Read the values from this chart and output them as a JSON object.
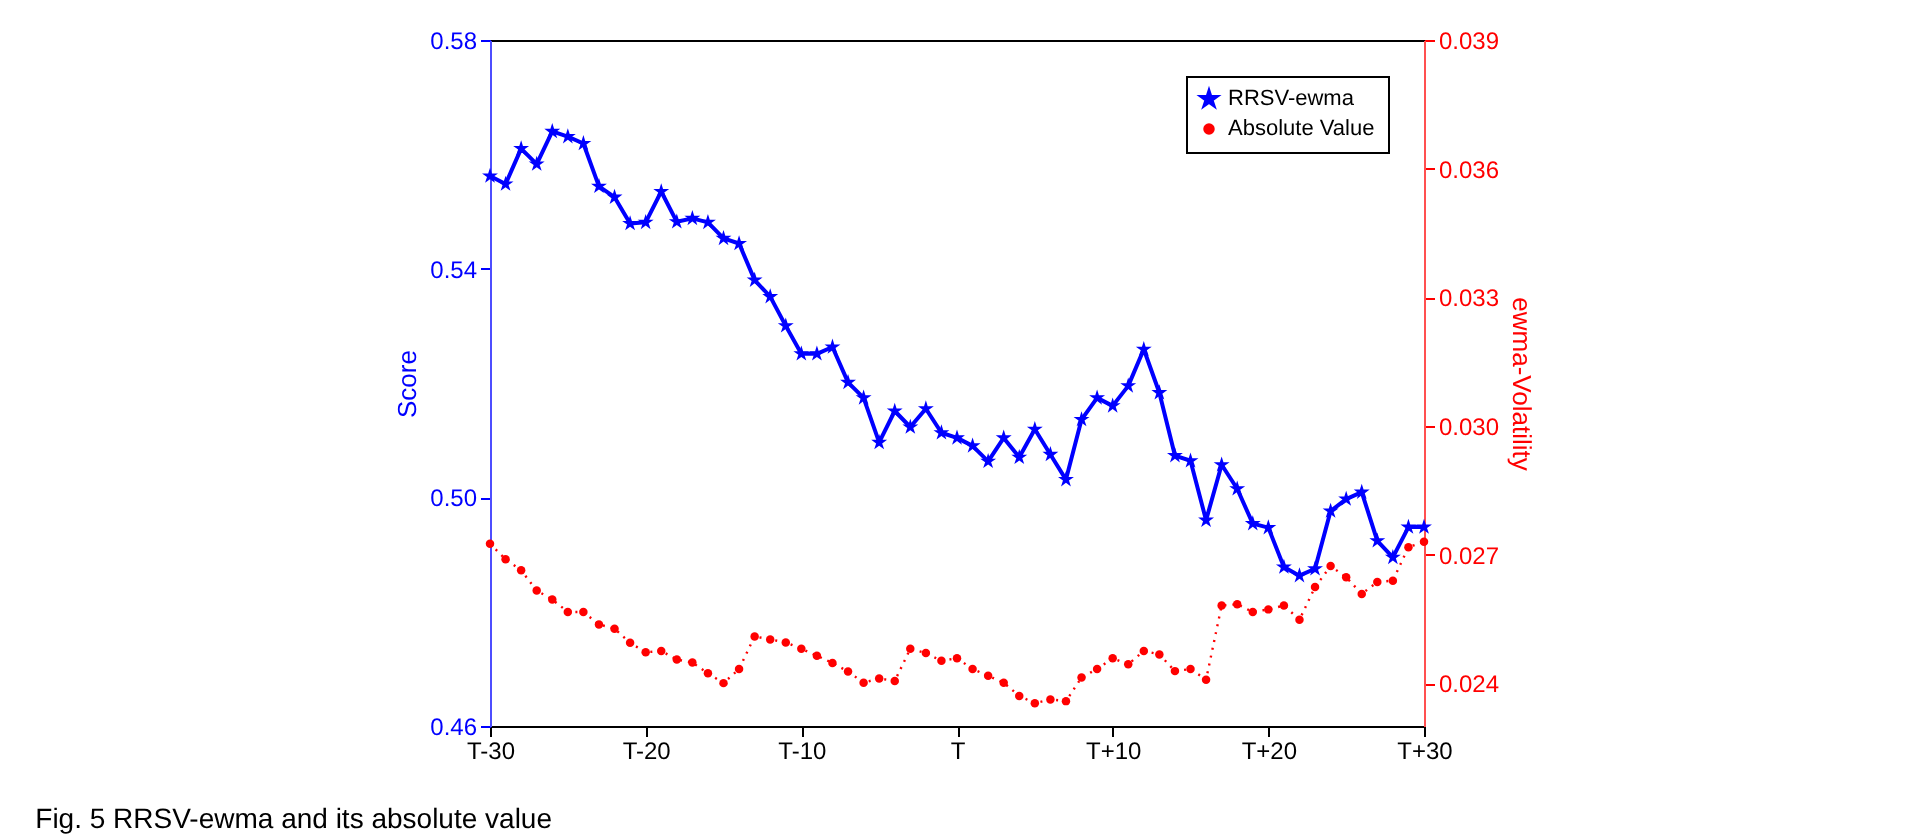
{
  "chart_data": {
    "type": "line",
    "xlabel": null,
    "ylabel": "Score",
    "y2label": "ewma-Volatility",
    "categories": [
      "T-30",
      null,
      null,
      null,
      null,
      null,
      null,
      null,
      null,
      null,
      "T-20",
      null,
      null,
      null,
      null,
      null,
      null,
      null,
      null,
      null,
      "T-10",
      null,
      null,
      null,
      null,
      null,
      null,
      null,
      null,
      null,
      "T",
      null,
      null,
      null,
      null,
      null,
      null,
      null,
      null,
      null,
      "T+10",
      null,
      null,
      null,
      null,
      null,
      null,
      null,
      null,
      null,
      "T+20",
      null,
      null,
      null,
      null,
      null,
      null,
      null,
      null,
      null,
      "T+30"
    ],
    "series": [
      {
        "name": "RRSV-ewma",
        "color": "#0000ff",
        "marker": "star",
        "line_style": "solid",
        "values": [
          0.5562,
          0.5548,
          0.561,
          0.5583,
          0.564,
          0.5631,
          0.5619,
          0.5544,
          0.5525,
          0.5479,
          0.5481,
          0.5535,
          0.5482,
          0.5488,
          0.5481,
          0.5453,
          0.5444,
          0.538,
          0.5351,
          0.53,
          0.5251,
          0.5251,
          0.5263,
          0.5201,
          0.5174,
          0.5096,
          0.5151,
          0.5123,
          0.5155,
          0.5113,
          0.5104,
          0.509,
          0.5063,
          0.5104,
          0.507,
          0.5119,
          0.5075,
          0.5031,
          0.5136,
          0.5174,
          0.516,
          0.5195,
          0.5259,
          0.5183,
          0.5073,
          0.5064,
          0.496,
          0.5057,
          0.5015,
          0.4954,
          0.4947,
          0.4878,
          0.4863,
          0.4875,
          0.4976,
          0.4997,
          0.5009,
          0.4924,
          0.4895,
          0.4948,
          0.4948
        ]
      },
      {
        "name": "Absolute Value",
        "color": "#ff0000",
        "marker": "circle",
        "line_style": "dotted",
        "axis": "y2",
        "values": [
          0.02725,
          0.02689,
          0.02663,
          0.02616,
          0.02595,
          0.02566,
          0.02566,
          0.02537,
          0.02527,
          0.02494,
          0.02472,
          0.02475,
          0.02455,
          0.02448,
          0.02423,
          0.024,
          0.02433,
          0.02509,
          0.02502,
          0.02495,
          0.0248,
          0.02464,
          0.02447,
          0.02427,
          0.02401,
          0.02411,
          0.02405,
          0.0248,
          0.0247,
          0.02452,
          0.02458,
          0.02433,
          0.02417,
          0.02401,
          0.0237,
          0.02353,
          0.02362,
          0.02358,
          0.02413,
          0.02433,
          0.02458,
          0.02444,
          0.02475,
          0.02467,
          0.02428,
          0.02433,
          0.02408,
          0.02581,
          0.02584,
          0.02566,
          0.02572,
          0.02581,
          0.02548,
          0.02624,
          0.02673,
          0.02647,
          0.02608,
          0.02636,
          0.02639,
          0.02717,
          0.0273
        ]
      }
    ],
    "ylim": [
      0.46,
      0.58
    ],
    "yticks": [
      0.46,
      {
        "value": 0.5,
        "label": "0.50"
      },
      0.54,
      0.58
    ],
    "y2lim": [
      0.023,
      0.039
    ],
    "y2ticks": [
      0.024,
      0.027,
      {
        "value": 0.03,
        "label": "0.030"
      },
      0.033,
      0.036,
      0.039
    ],
    "legend": "top right",
    "grid": false,
    "annotations": [
      "Fig. 5  RRSV-ewma and its absolute value"
    ]
  }
}
